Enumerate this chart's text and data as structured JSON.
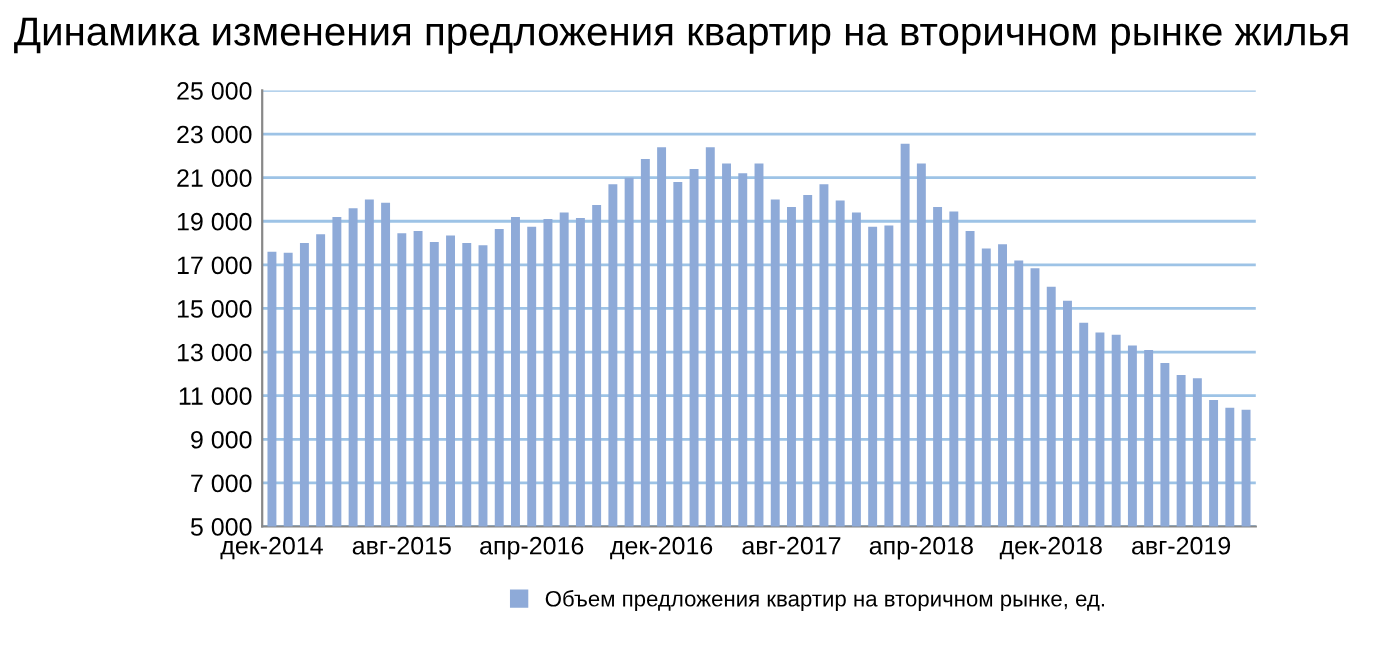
{
  "chart_data": {
    "type": "bar",
    "title": "Динамика изменения предложения квартир на вторичном рынке жилья",
    "categories": [
      "дек-2014",
      null,
      null,
      null,
      null,
      null,
      null,
      null,
      "авг-2015",
      null,
      null,
      null,
      null,
      null,
      null,
      null,
      "апр-2016",
      null,
      null,
      null,
      null,
      null,
      null,
      null,
      "дек-2016",
      null,
      null,
      null,
      null,
      null,
      null,
      null,
      "авг-2017",
      null,
      null,
      null,
      null,
      null,
      null,
      null,
      "апр-2018",
      null,
      null,
      null,
      null,
      null,
      null,
      null,
      "дек-2018",
      null,
      null,
      null,
      null,
      null,
      null,
      null,
      "авг-2019",
      null,
      null,
      null,
      null
    ],
    "series": [
      {
        "name": "Объем предложения квартир на вторичном рынке, ед.",
        "color": "#8eaad8",
        "values": [
          17600,
          17550,
          18000,
          18400,
          19200,
          19600,
          20000,
          19850,
          18450,
          18550,
          18050,
          18350,
          18000,
          17900,
          18650,
          19200,
          18750,
          19100,
          19400,
          19150,
          19750,
          20700,
          21000,
          21850,
          22400,
          20800,
          21400,
          22400,
          21650,
          21200,
          21650,
          20000,
          19650,
          20200,
          20700,
          19950,
          19400,
          18750,
          18800,
          22550,
          21650,
          19650,
          19450,
          18550,
          17750,
          17950,
          17200,
          16850,
          16000,
          15350,
          14350,
          13900,
          13800,
          13300,
          13100,
          12500,
          11950,
          11800,
          10800,
          10450,
          10350
        ]
      }
    ],
    "ylim": [
      5000,
      25000
    ],
    "yticks": [
      {
        "value": 5000,
        "label": "5 000"
      },
      {
        "value": 7000,
        "label": "7 000"
      },
      {
        "value": 9000,
        "label": "9 000"
      },
      {
        "value": 11000,
        "label": "11 000"
      },
      {
        "value": 13000,
        "label": "13 000"
      },
      {
        "value": 15000,
        "label": "15 000"
      },
      {
        "value": 17000,
        "label": "17 000"
      },
      {
        "value": 19000,
        "label": "19 000"
      },
      {
        "value": 21000,
        "label": "21 000"
      },
      {
        "value": 23000,
        "label": "23 000"
      },
      {
        "value": 25000,
        "label": "25 000"
      }
    ],
    "grid": "y",
    "legend": "bottom"
  }
}
